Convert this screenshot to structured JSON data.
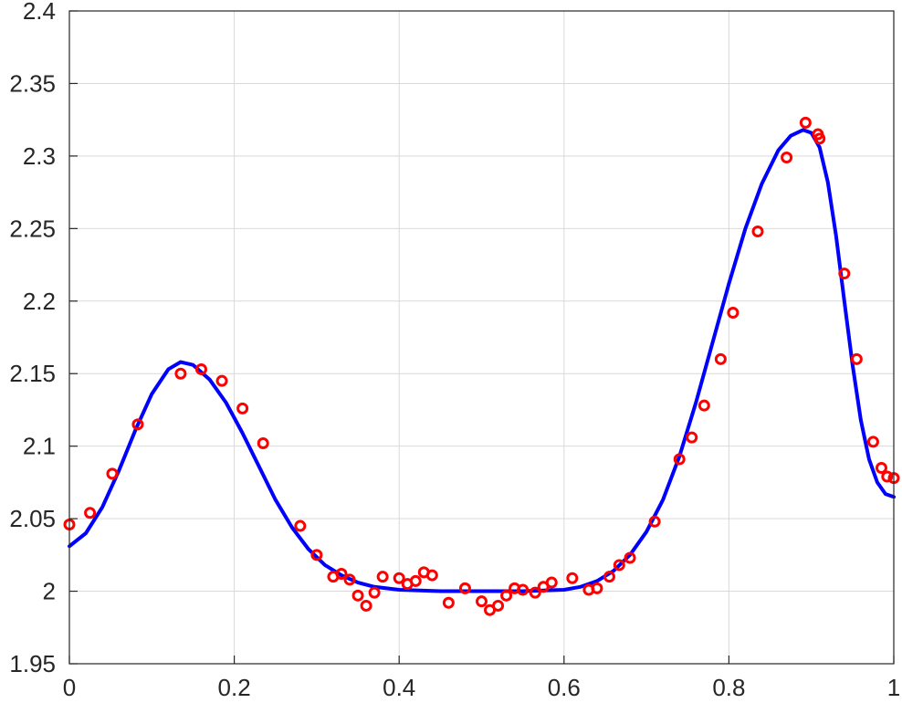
{
  "chart_data": {
    "type": "scatter",
    "title": "",
    "xlabel": "",
    "ylabel": "",
    "xlim": [
      0,
      1
    ],
    "ylim": [
      1.95,
      2.4
    ],
    "grid": true,
    "legend": "none",
    "x_ticks": [
      "0",
      "0.2",
      "0.4",
      "0.6",
      "0.8",
      "1"
    ],
    "y_ticks": [
      "1.95",
      "2",
      "2.05",
      "2.1",
      "2.15",
      "2.2",
      "2.25",
      "2.3",
      "2.35",
      "2.4"
    ],
    "x_tick_values": [
      0,
      0.2,
      0.4,
      0.6,
      0.8,
      1
    ],
    "y_tick_values": [
      1.95,
      2.0,
      2.05,
      2.1,
      2.15,
      2.2,
      2.25,
      2.3,
      2.35,
      2.4
    ],
    "series": [
      {
        "kind": "markers",
        "marker": "circle-open",
        "color": "#ff0000",
        "points": [
          [
            0.0,
            2.046
          ],
          [
            0.025,
            2.054
          ],
          [
            0.052,
            2.081
          ],
          [
            0.083,
            2.115
          ],
          [
            0.135,
            2.15
          ],
          [
            0.16,
            2.153
          ],
          [
            0.185,
            2.145
          ],
          [
            0.21,
            2.126
          ],
          [
            0.235,
            2.102
          ],
          [
            0.28,
            2.045
          ],
          [
            0.3,
            2.025
          ],
          [
            0.32,
            2.01
          ],
          [
            0.33,
            2.012
          ],
          [
            0.34,
            2.008
          ],
          [
            0.35,
            1.997
          ],
          [
            0.36,
            1.99
          ],
          [
            0.37,
            1.999
          ],
          [
            0.38,
            2.01
          ],
          [
            0.4,
            2.009
          ],
          [
            0.41,
            2.005
          ],
          [
            0.42,
            2.007
          ],
          [
            0.43,
            2.013
          ],
          [
            0.44,
            2.011
          ],
          [
            0.46,
            1.992
          ],
          [
            0.48,
            2.002
          ],
          [
            0.5,
            1.993
          ],
          [
            0.51,
            1.987
          ],
          [
            0.52,
            1.99
          ],
          [
            0.53,
            1.997
          ],
          [
            0.54,
            2.002
          ],
          [
            0.55,
            2.001
          ],
          [
            0.565,
            1.999
          ],
          [
            0.575,
            2.003
          ],
          [
            0.585,
            2.006
          ],
          [
            0.61,
            2.009
          ],
          [
            0.63,
            2.001
          ],
          [
            0.64,
            2.002
          ],
          [
            0.655,
            2.01
          ],
          [
            0.667,
            2.018
          ],
          [
            0.68,
            2.023
          ],
          [
            0.71,
            2.048
          ],
          [
            0.74,
            2.091
          ],
          [
            0.755,
            2.106
          ],
          [
            0.77,
            2.128
          ],
          [
            0.79,
            2.16
          ],
          [
            0.805,
            2.192
          ],
          [
            0.835,
            2.248
          ],
          [
            0.87,
            2.299
          ],
          [
            0.893,
            2.323
          ],
          [
            0.908,
            2.315
          ],
          [
            0.91,
            2.312
          ],
          [
            0.94,
            2.219
          ],
          [
            0.955,
            2.16
          ],
          [
            0.975,
            2.103
          ],
          [
            0.985,
            2.085
          ],
          [
            0.992,
            2.079
          ],
          [
            1.0,
            2.078
          ]
        ]
      },
      {
        "kind": "line",
        "color": "#0000ff",
        "points": [
          [
            0.0,
            2.031
          ],
          [
            0.02,
            2.04
          ],
          [
            0.04,
            2.058
          ],
          [
            0.06,
            2.083
          ],
          [
            0.08,
            2.111
          ],
          [
            0.1,
            2.136
          ],
          [
            0.12,
            2.153
          ],
          [
            0.135,
            2.158
          ],
          [
            0.15,
            2.156
          ],
          [
            0.17,
            2.146
          ],
          [
            0.19,
            2.13
          ],
          [
            0.21,
            2.109
          ],
          [
            0.23,
            2.086
          ],
          [
            0.25,
            2.063
          ],
          [
            0.27,
            2.044
          ],
          [
            0.29,
            2.029
          ],
          [
            0.31,
            2.018
          ],
          [
            0.33,
            2.011
          ],
          [
            0.35,
            2.006
          ],
          [
            0.37,
            2.003
          ],
          [
            0.4,
            2.001
          ],
          [
            0.45,
            2.0
          ],
          [
            0.5,
            2.0
          ],
          [
            0.55,
            2.0
          ],
          [
            0.6,
            2.001
          ],
          [
            0.62,
            2.003
          ],
          [
            0.64,
            2.007
          ],
          [
            0.66,
            2.014
          ],
          [
            0.68,
            2.025
          ],
          [
            0.7,
            2.041
          ],
          [
            0.72,
            2.063
          ],
          [
            0.74,
            2.093
          ],
          [
            0.76,
            2.13
          ],
          [
            0.78,
            2.171
          ],
          [
            0.8,
            2.212
          ],
          [
            0.82,
            2.25
          ],
          [
            0.84,
            2.281
          ],
          [
            0.86,
            2.304
          ],
          [
            0.875,
            2.314
          ],
          [
            0.89,
            2.318
          ],
          [
            0.9,
            2.316
          ],
          [
            0.91,
            2.306
          ],
          [
            0.92,
            2.282
          ],
          [
            0.93,
            2.245
          ],
          [
            0.94,
            2.2
          ],
          [
            0.95,
            2.156
          ],
          [
            0.96,
            2.118
          ],
          [
            0.97,
            2.091
          ],
          [
            0.98,
            2.075
          ],
          [
            0.99,
            2.067
          ],
          [
            1.0,
            2.065
          ]
        ]
      }
    ]
  }
}
